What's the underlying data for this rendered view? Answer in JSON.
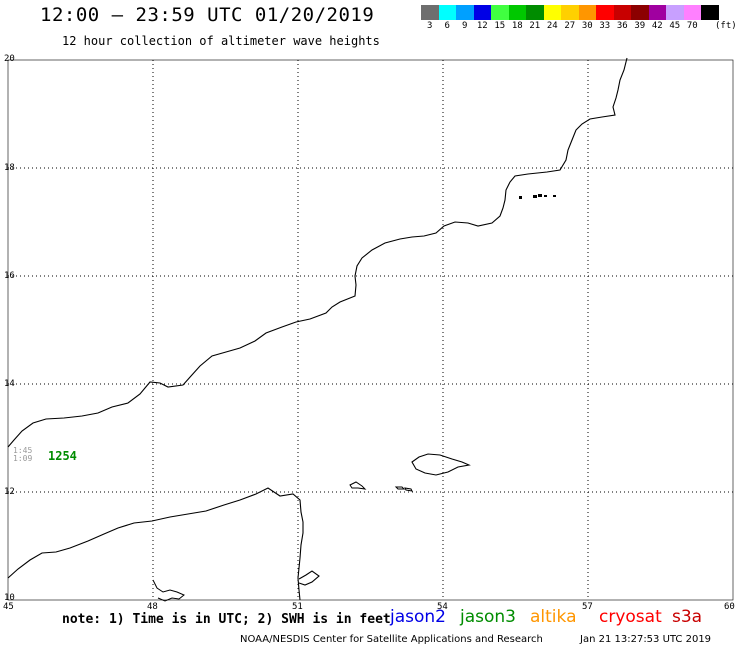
{
  "header": {
    "title": "12:00 – 23:59 UTC 01/20/2019",
    "subtitle": "12 hour collection of altimeter wave heights"
  },
  "legend": {
    "unit": "(ft)",
    "entries": [
      {
        "label": "3",
        "color": "#6e6e6e"
      },
      {
        "label": "6",
        "color": "#00ffff"
      },
      {
        "label": "9",
        "color": "#00a0ff"
      },
      {
        "label": "12",
        "color": "#0000e6"
      },
      {
        "label": "15",
        "color": "#40ff40"
      },
      {
        "label": "18",
        "color": "#00c800"
      },
      {
        "label": "21",
        "color": "#008c00"
      },
      {
        "label": "24",
        "color": "#ffff00"
      },
      {
        "label": "27",
        "color": "#ffd000"
      },
      {
        "label": "30",
        "color": "#ff9600"
      },
      {
        "label": "33",
        "color": "#ff0000"
      },
      {
        "label": "36",
        "color": "#c80000"
      },
      {
        "label": "39",
        "color": "#8c0000"
      },
      {
        "label": "42",
        "color": "#a000a0"
      },
      {
        "label": "45",
        "color": "#c8a0ff"
      },
      {
        "label": "70",
        "color": "#ff80ff"
      },
      {
        "label": "",
        "color": "#000000"
      }
    ]
  },
  "map": {
    "lat_labels": [
      "20",
      "18",
      "16",
      "14",
      "12",
      "10"
    ],
    "lon_labels": [
      "45",
      "48",
      "51",
      "54",
      "57",
      "60"
    ],
    "observation": {
      "value": "1254",
      "value_color": "#008c00",
      "time_line1": "1:45",
      "time_line2": "1:09"
    }
  },
  "footer": {
    "note": "note: 1) Time is in UTC; 2) SWH is in feet",
    "satellites": [
      {
        "name": "jason2",
        "color": "#0000e6"
      },
      {
        "name": "jason3",
        "color": "#008c00"
      },
      {
        "name": "altika",
        "color": "#ff9600"
      },
      {
        "name": "cryosat",
        "color": "#ff0000"
      },
      {
        "name": "s3a",
        "color": "#c80000"
      }
    ],
    "credit": "NOAA/NESDIS Center for Satellite Applications and Research",
    "timestamp": "Jan 21 13:27:53 UTC 2019"
  }
}
